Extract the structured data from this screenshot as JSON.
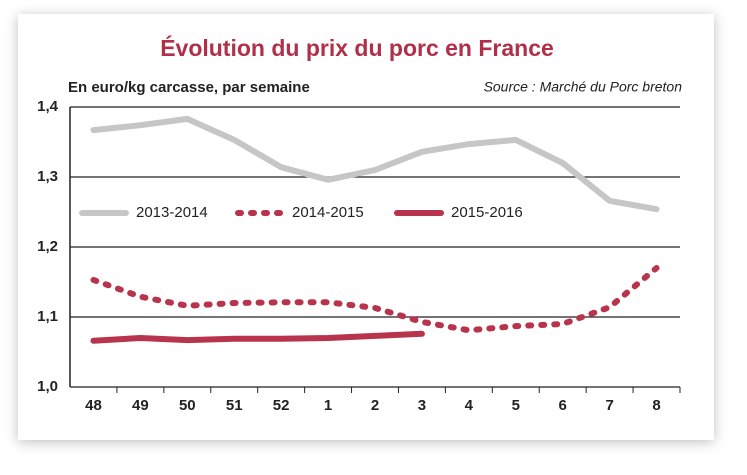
{
  "chart_data": {
    "type": "line",
    "title": "Évolution du prix du porc en France",
    "subtitle": "En euro/kg carcasse, par semaine",
    "source": "Source : Marché du Porc breton",
    "categories": [
      "48",
      "49",
      "50",
      "51",
      "52",
      "1",
      "2",
      "3",
      "4",
      "5",
      "6",
      "7",
      "8"
    ],
    "series": [
      {
        "name": "2013-2014",
        "color": "#c6c6c6",
        "dash": "solid",
        "values": [
          1.367,
          1.374,
          1.383,
          1.353,
          1.314,
          1.296,
          1.31,
          1.336,
          1.347,
          1.353,
          1.32,
          1.266,
          1.254
        ]
      },
      {
        "name": "2014-2015",
        "color": "#b8344c",
        "dash": "dotted",
        "values": [
          1.153,
          1.129,
          1.116,
          1.12,
          1.121,
          1.121,
          1.113,
          1.093,
          1.081,
          1.087,
          1.09,
          1.114,
          1.17
        ]
      },
      {
        "name": "2015-2016",
        "color": "#b8344c",
        "dash": "solid",
        "values": [
          1.066,
          1.07,
          1.067,
          1.069,
          1.069,
          1.07,
          1.073,
          1.076,
          null,
          null,
          null,
          null,
          null
        ]
      }
    ],
    "ylim": [
      1.0,
      1.4
    ],
    "yticks": [
      {
        "value": 1.0,
        "label": "1,0"
      },
      {
        "value": 1.1,
        "label": "1,1"
      },
      {
        "value": 1.2,
        "label": "1,2"
      },
      {
        "value": 1.3,
        "label": "1,3"
      },
      {
        "value": 1.4,
        "label": "1,4"
      }
    ],
    "grid": true
  }
}
